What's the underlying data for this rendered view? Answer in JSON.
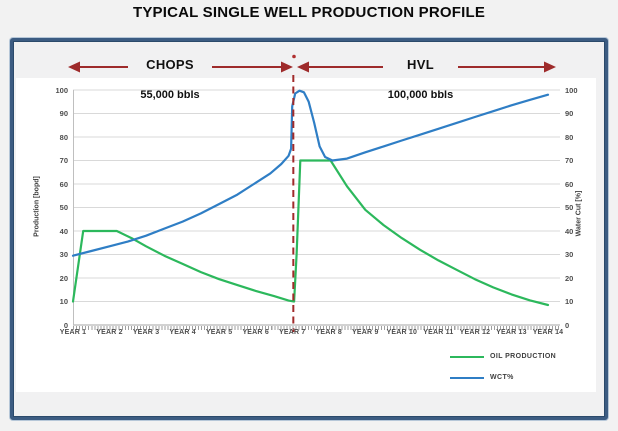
{
  "title": "TYPICAL SINGLE WELL PRODUCTION PROFILE",
  "annotations": {
    "chops": {
      "label": "CHOPS",
      "volume": "55,000 bbls"
    },
    "hvl": {
      "label": "HVL",
      "volume": "100,000 bbls"
    }
  },
  "colors": {
    "oil_green": "#2cb85c",
    "wct_blue": "#2f7ec5",
    "phase_red": "#9e2b2b",
    "divider_red": "#a12a2a",
    "grid": "#d9d9d9",
    "axis": "#a6a6a6",
    "frame_border": "#3c5c82"
  },
  "chart_data": {
    "type": "line",
    "title": "TYPICAL SINGLE WELL PRODUCTION PROFILE",
    "grid": true,
    "legend_position": "bottom-right",
    "x_ticks": [
      "YEAR 1",
      "YEAR 2",
      "YEAR 3",
      "YEAR 4",
      "YEAR 5",
      "YEAR 6",
      "YEAR 7",
      "YEAR 8",
      "YEAR 9",
      "YEAR 10",
      "YEAR 11",
      "YEAR 12",
      "YEAR 13",
      "YEAR 14"
    ],
    "x_range": [
      1,
      14.33
    ],
    "y_left": {
      "label": "Production [bopd]",
      "min": 0,
      "max": 100,
      "step": 10,
      "ticks": [
        0,
        10,
        20,
        30,
        40,
        50,
        60,
        70,
        80,
        90,
        100
      ]
    },
    "y_right": {
      "label": "Water Cut [%]",
      "min": 0,
      "max": 100,
      "step": 10,
      "ticks": [
        0,
        10,
        20,
        30,
        40,
        50,
        60,
        70,
        80,
        90,
        100
      ]
    },
    "divider_year": 7.03,
    "phases": [
      {
        "name": "CHOPS",
        "cumulative": "55,000 bbls",
        "from_year": 1,
        "to_year": 7.03
      },
      {
        "name": "HVL",
        "cumulative": "100,000 bbls",
        "from_year": 7.03,
        "to_year": 14.33
      }
    ],
    "series": [
      {
        "name": "OIL PRODUCTION",
        "color": "#2cb85c",
        "axis": "left",
        "points": [
          [
            1,
            10
          ],
          [
            1.28,
            40
          ],
          [
            2.2,
            40
          ],
          [
            2.6,
            37
          ],
          [
            3,
            33.5
          ],
          [
            3.5,
            29.5
          ],
          [
            4,
            26
          ],
          [
            4.5,
            22.5
          ],
          [
            5,
            19.5
          ],
          [
            5.5,
            17
          ],
          [
            6,
            14.5
          ],
          [
            6.5,
            12.3
          ],
          [
            6.9,
            10.4
          ],
          [
            7.05,
            10
          ],
          [
            7.12,
            30
          ],
          [
            7.22,
            70
          ],
          [
            8.05,
            70
          ],
          [
            8.5,
            59
          ],
          [
            9,
            49
          ],
          [
            9.5,
            42.5
          ],
          [
            10,
            37
          ],
          [
            10.5,
            32
          ],
          [
            11,
            27.5
          ],
          [
            11.5,
            23.5
          ],
          [
            12,
            19.5
          ],
          [
            12.5,
            16
          ],
          [
            13,
            13
          ],
          [
            13.5,
            10.5
          ],
          [
            14,
            8.5
          ]
        ]
      },
      {
        "name": "WCT%",
        "color": "#2f7ec5",
        "axis": "right",
        "points": [
          [
            1,
            29.5
          ],
          [
            1.5,
            31.5
          ],
          [
            2,
            33.5
          ],
          [
            2.5,
            35.5
          ],
          [
            3,
            38
          ],
          [
            3.5,
            41
          ],
          [
            4,
            44
          ],
          [
            4.5,
            47.5
          ],
          [
            5,
            51.5
          ],
          [
            5.5,
            55.5
          ],
          [
            6,
            60.5
          ],
          [
            6.4,
            64.5
          ],
          [
            6.7,
            68.5
          ],
          [
            6.9,
            72
          ],
          [
            6.97,
            75
          ],
          [
            7.0,
            93
          ],
          [
            7.08,
            98.5
          ],
          [
            7.2,
            99.7
          ],
          [
            7.32,
            99
          ],
          [
            7.45,
            95
          ],
          [
            7.6,
            86
          ],
          [
            7.75,
            76
          ],
          [
            7.9,
            71.5
          ],
          [
            8.1,
            70
          ],
          [
            8.5,
            70.8
          ],
          [
            9,
            73.5
          ],
          [
            9.5,
            76
          ],
          [
            10,
            78.5
          ],
          [
            10.5,
            81
          ],
          [
            11,
            83.5
          ],
          [
            11.5,
            86
          ],
          [
            12,
            88.5
          ],
          [
            12.5,
            91
          ],
          [
            13,
            93.5
          ],
          [
            13.5,
            95.8
          ],
          [
            14,
            98
          ]
        ]
      }
    ]
  },
  "legend": [
    {
      "label": "OIL PRODUCTION",
      "color": "#2cb85c"
    },
    {
      "label": "WCT%",
      "color": "#2f7ec5"
    }
  ]
}
